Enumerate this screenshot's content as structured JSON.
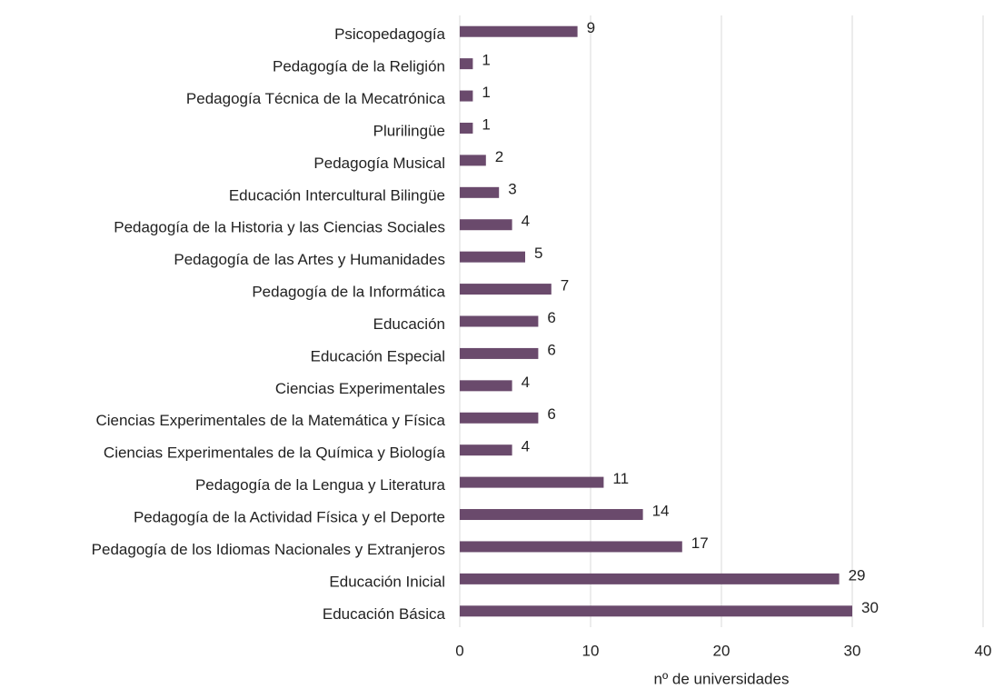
{
  "chart_data": {
    "type": "barh",
    "categories": [
      "Psicopedagogía",
      "Pedagogía de la Religión",
      "Pedagogía Técnica de la Mecatrónica",
      "Plurilingüe",
      "Pedagogía Musical",
      "Educación Intercultural Bilingüe",
      "Pedagogía de la Historia y las Ciencias Sociales",
      "Pedagogía de las Artes y Humanidades",
      "Pedagogía de la Informática",
      "Educación",
      "Educación Especial",
      "Ciencias Experimentales",
      "Ciencias Experimentales de la Matemática y Física",
      "Ciencias Experimentales de la Química y Biología",
      "Pedagogía de la Lengua y Literatura",
      "Pedagogía de la Actividad Física y el Deporte",
      "Pedagogía de los Idiomas Nacionales y Extranjeros",
      "Educación Inicial",
      "Educación Básica"
    ],
    "values": [
      9,
      1,
      1,
      1,
      2,
      3,
      4,
      5,
      7,
      6,
      6,
      4,
      6,
      4,
      11,
      14,
      17,
      29,
      30
    ],
    "color": "#6a4a6c",
    "xlabel": "nº de universidades",
    "xlim": [
      0,
      40
    ],
    "xticks": [
      0,
      10,
      20,
      30,
      40
    ],
    "grid": true
  }
}
